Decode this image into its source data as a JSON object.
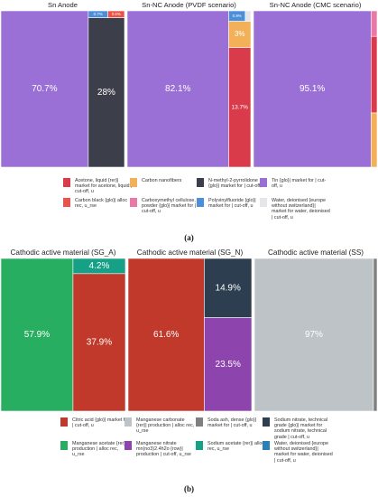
{
  "figure_labels": {
    "a": "(a)",
    "b": "(b)"
  },
  "legends": {
    "a": [
      {
        "label": "Acetone, liquid {rer}| market for acetone, liquid | cut-off, u",
        "color": "#d93b4b"
      },
      {
        "label": "Carbon nanofibers",
        "color": "#f2b158"
      },
      {
        "label": "N-methyl-2-pyrrolidone {glo}| market for | cut-off, u",
        "color": "#3c3f49"
      },
      {
        "label": "Tin {glo}| market for | cut-off, u",
        "color": "#9a6fd6"
      },
      {
        "label": "Carbon black {glo}| alloc rec, u_rse",
        "color": "#e85449"
      },
      {
        "label": "Carboxymethyl cellulose, powder {glo}| market for | cut-off, u",
        "color": "#e879a6"
      },
      {
        "label": "Polyvinylfluoride {glo}| market for | cut-off, u",
        "color": "#4c8fd8"
      },
      {
        "label": "Water, deionised {europe without switzerland}| market for water, deionised | cut-off, u",
        "color": "#e4e6ea"
      }
    ],
    "b": [
      {
        "label": "Citric acid {glo}| market for | cut-off, u",
        "color": "#c0392b"
      },
      {
        "label": "Manganese carbonate {rer}| production | alloc rec, u_rse",
        "color": "#bdc3c7"
      },
      {
        "label": "Soda ash, dense {glo}| market for | cut-off, u",
        "color": "#7f7f7f"
      },
      {
        "label": "Sodium nitrate, technical grade {glo}| market for sodium nitrate, technical grade | cut-off, u",
        "color": "#2c3e50"
      },
      {
        "label": "Manganese acetate {rer}| production | alloc rec, u_rse",
        "color": "#27ae60"
      },
      {
        "label": "Manganese nitrate mn(no3)2.4h2o {row}| production | cut-off, u_rse",
        "color": "#8e44ad"
      },
      {
        "label": "Sodium acetate {rer}| alloc rec, u_rse",
        "color": "#16a085"
      },
      {
        "label": "Water, deionised {europe without switzerland}| market for water, deionised | cut-off, u",
        "color": "#2980b9"
      }
    ]
  },
  "chart_data": [
    {
      "type": "treemap",
      "title": "Sn Anode",
      "series": [
        {
          "name": "Tin {glo}| market for | cut-off, u",
          "value": 70.7,
          "label": "70.7%"
        },
        {
          "name": "N-methyl-2-pyrrolidone {glo}| market for | cut-off, u",
          "value": 28.0,
          "label": "28%"
        },
        {
          "name": "Polyvinylfluoride {glo}| market for | cut-off, u",
          "value": 0.7,
          "label": "0.7%"
        },
        {
          "name": "Carbon black {glo}| alloc rec, u_rse",
          "value": 0.6,
          "label": "0.6%"
        }
      ]
    },
    {
      "type": "treemap",
      "title": "Sn-NC Anode (PVDF scenario)",
      "series": [
        {
          "name": "Tin {glo}| market for | cut-off, u",
          "value": 82.1,
          "label": "82.1%"
        },
        {
          "name": "Acetone, liquid {rer}| market for acetone, liquid | cut-off, u",
          "value": 13.7,
          "label": "13.7%"
        },
        {
          "name": "Carbon nanofibers",
          "value": 3.0,
          "label": "3%"
        },
        {
          "name": "Polyvinylfluoride {glo}| market for | cut-off, u",
          "value": 0.9,
          "label": "0.9%"
        },
        {
          "name": "Water, deionised {europe without switzerland}| market for water, deionised | cut-off, u",
          "value": 0.3,
          "label": ""
        }
      ]
    },
    {
      "type": "treemap",
      "title": "Sn-NC Anode (CMC scenario)",
      "series": [
        {
          "name": "Tin {glo}| market for | cut-off, u",
          "value": 95.1,
          "label": "95.1%"
        },
        {
          "name": "Acetone, liquid {rer}| market for acetone, liquid | cut-off, u",
          "value": 2.4,
          "label": ""
        },
        {
          "name": "Carbon nanofibers",
          "value": 1.7,
          "label": ""
        },
        {
          "name": "Carboxymethyl cellulose, powder {glo}| market for | cut-off, u",
          "value": 0.8,
          "label": ""
        }
      ]
    },
    {
      "type": "treemap",
      "title": "Cathodic active material (SG_A)",
      "series": [
        {
          "name": "Manganese acetate {rer}| production | alloc rec, u_rse",
          "value": 57.9,
          "label": "57.9%"
        },
        {
          "name": "Citric acid {glo}| market for | cut-off, u",
          "value": 37.9,
          "label": "37.9%"
        },
        {
          "name": "Sodium acetate {rer}| alloc rec, u_rse",
          "value": 4.2,
          "label": "4.2%"
        }
      ]
    },
    {
      "type": "treemap",
      "title": "Cathodic active material (SG_N)",
      "series": [
        {
          "name": "Citric acid {glo}| market for | cut-off, u",
          "value": 61.6,
          "label": "61.6%"
        },
        {
          "name": "Manganese nitrate mn(no3)2.4h2o {row}| production | cut-off, u_rse",
          "value": 23.5,
          "label": "23.5%"
        },
        {
          "name": "Sodium nitrate, technical grade {glo}| market for sodium nitrate, technical grade | cut-off, u",
          "value": 14.9,
          "label": "14.9%"
        }
      ]
    },
    {
      "type": "treemap",
      "title": "Cathodic active material (SS)",
      "series": [
        {
          "name": "Manganese carbonate {rer}| production | alloc rec, u_rse",
          "value": 97.0,
          "label": "97%"
        },
        {
          "name": "Soda ash, dense {glo}| market for | cut-off, u",
          "value": 3.0,
          "label": ""
        }
      ]
    }
  ]
}
